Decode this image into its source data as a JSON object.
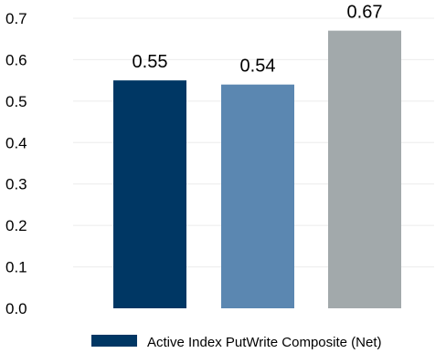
{
  "chart_data": {
    "type": "bar",
    "categories": [
      "",
      "",
      ""
    ],
    "values": [
      0.55,
      0.54,
      0.67
    ],
    "data_labels": [
      "0.55",
      "0.54",
      "0.67"
    ],
    "bar_colors": [
      "#003764",
      "#5b87b1",
      "#a2a9ab"
    ],
    "title": "",
    "xlabel": "",
    "ylabel": "",
    "ylim": [
      0,
      0.7
    ],
    "yticks": [
      0.0,
      0.1,
      0.2,
      0.3,
      0.4,
      0.5,
      0.6,
      0.7
    ],
    "ytick_labels": [
      "0.0",
      "0.1",
      "0.2",
      "0.3",
      "0.4",
      "0.5",
      "0.6",
      "0.7"
    ],
    "grid": true,
    "gridline_color": "#ececec",
    "legend": {
      "placement": "bottom",
      "entries": [
        {
          "label": "Active Index PutWrite Composite (Net)",
          "color": "#003764"
        }
      ]
    }
  }
}
